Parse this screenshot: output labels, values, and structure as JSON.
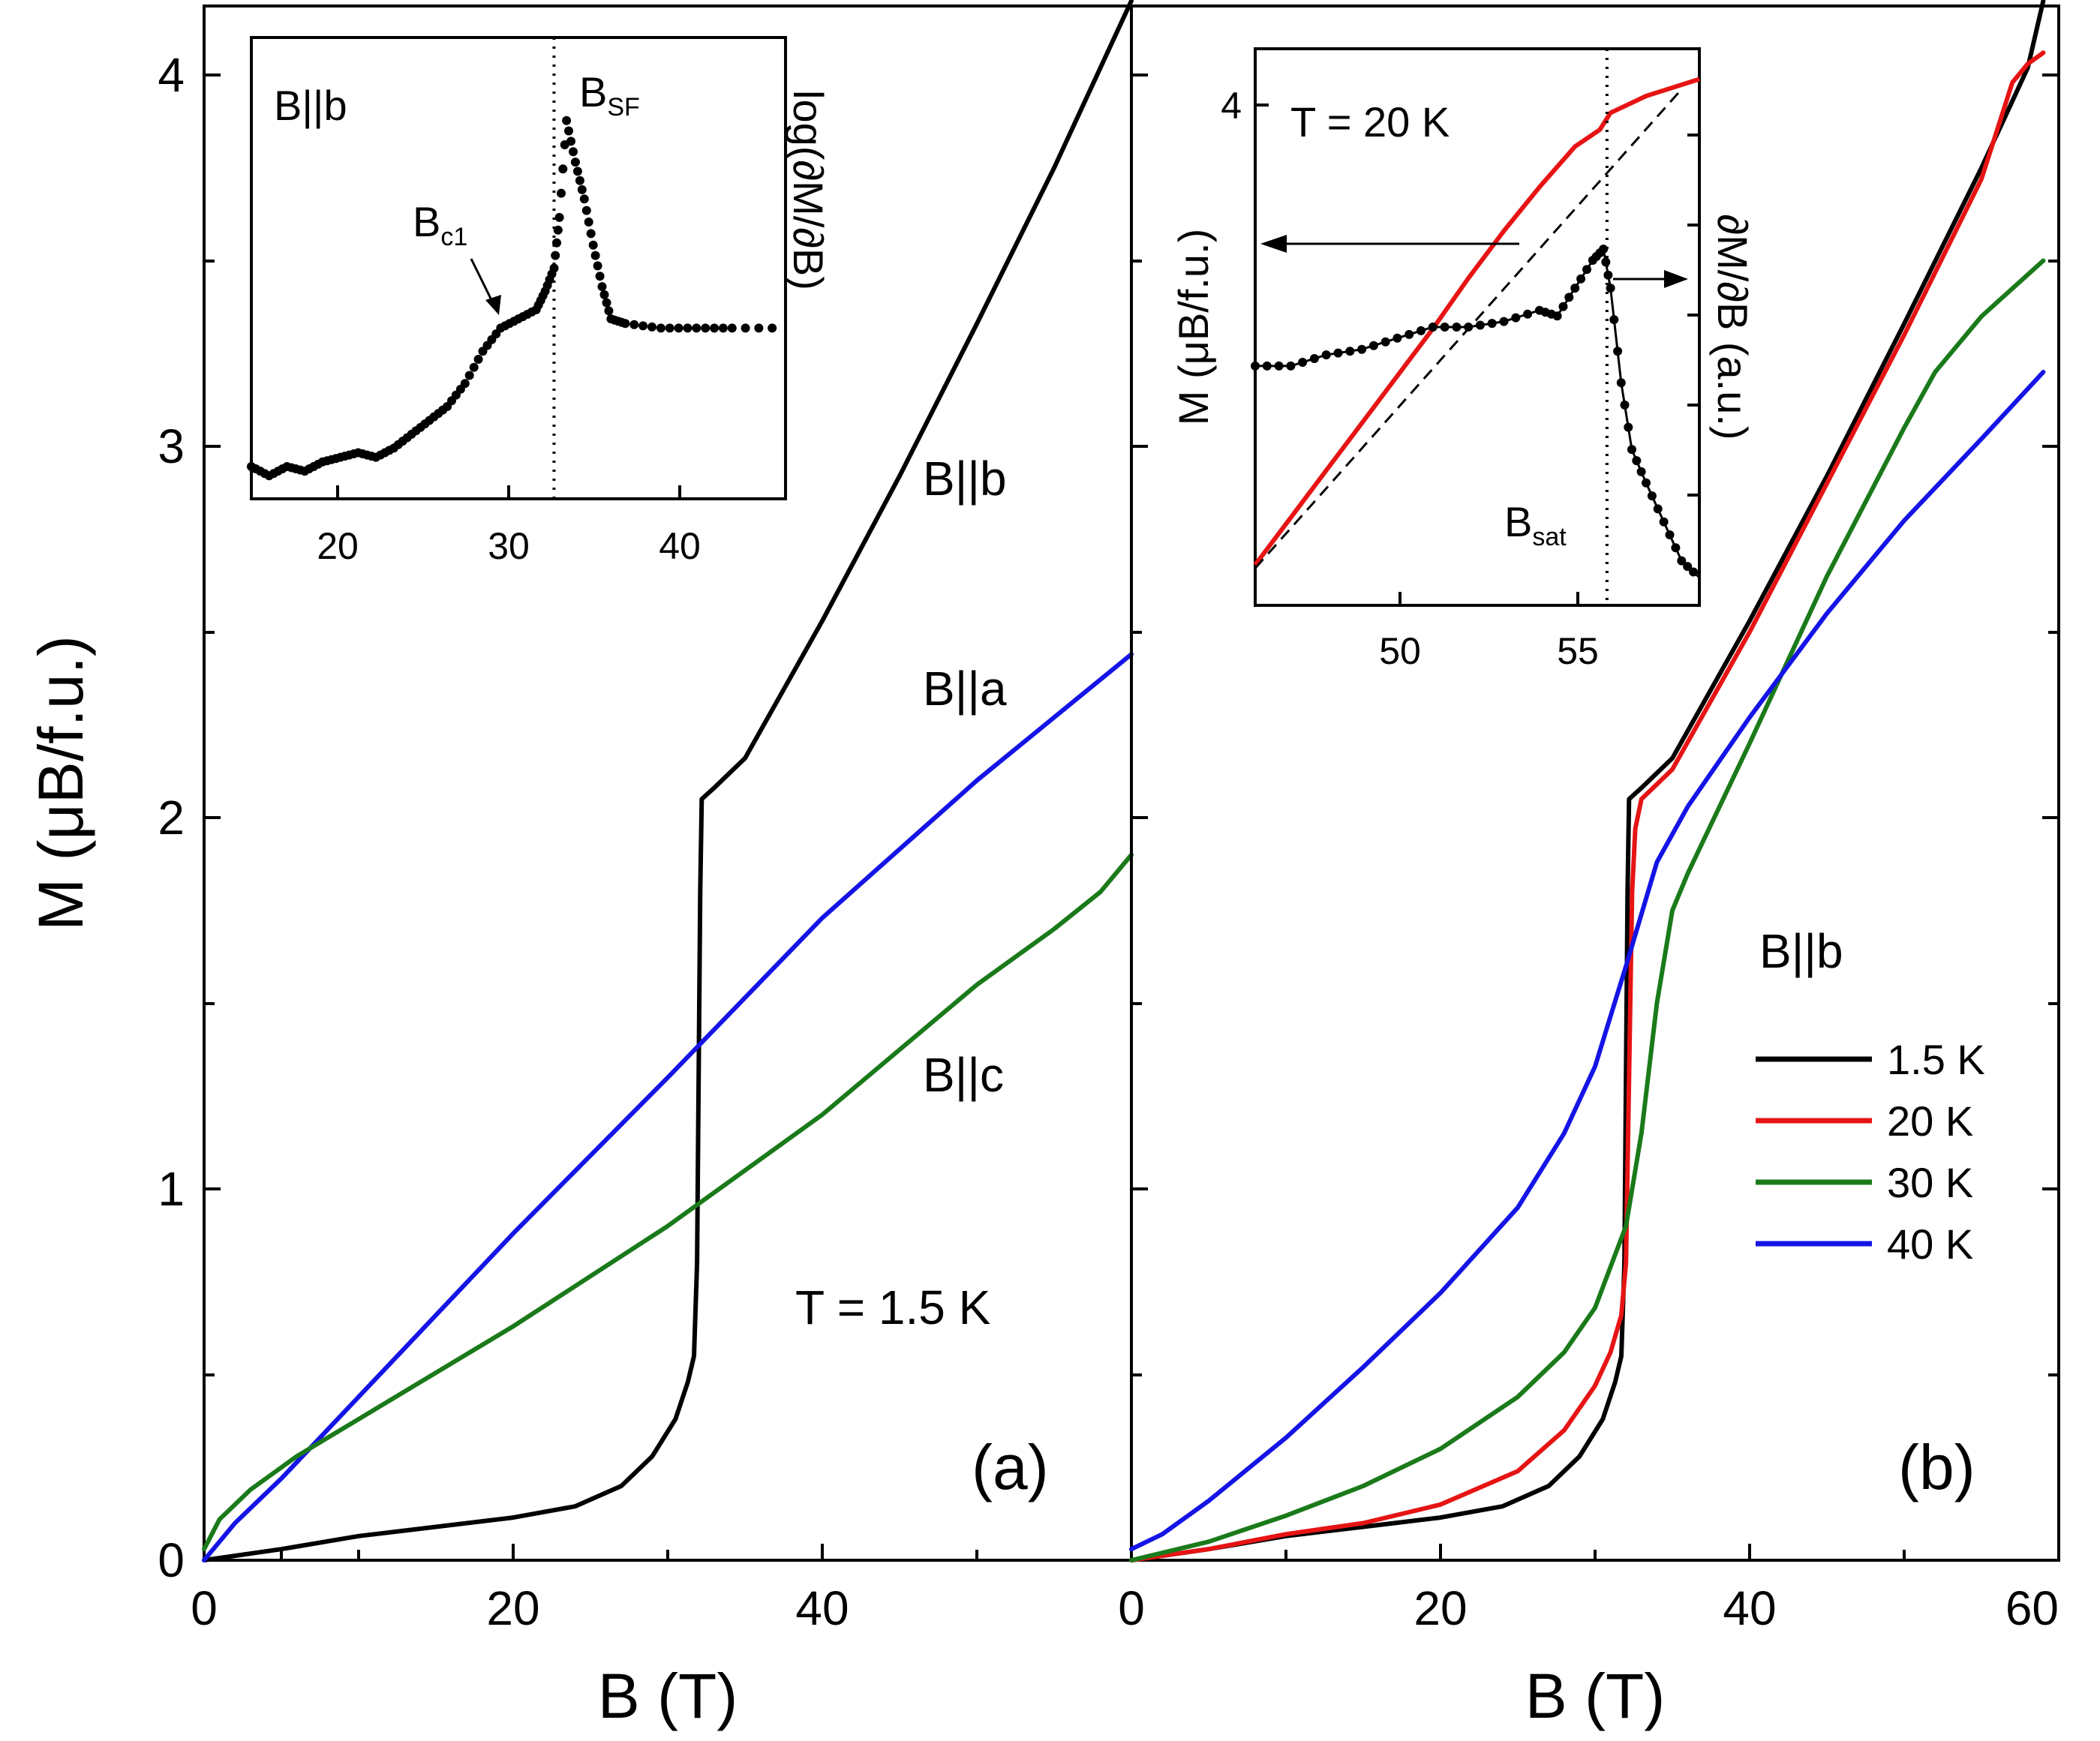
{
  "chart_data": [
    {
      "id": "a",
      "type": "line",
      "panel_label": "(a)",
      "xlabel": "B (T)",
      "ylabel": "M (μB/f.u.)",
      "xlim": [
        0,
        60
      ],
      "ylim": [
        0,
        4.2
      ],
      "x_ticks": [
        "0",
        "20",
        "40"
      ],
      "y_ticks": [
        "0",
        "1",
        "2",
        "3",
        "4"
      ],
      "annotation": "T = 1.5 K",
      "series": [
        {
          "name": "B||b",
          "color": "#000000",
          "points": [
            [
              0,
              0
            ],
            [
              5,
              0.03
            ],
            [
              10,
              0.065
            ],
            [
              15,
              0.09
            ],
            [
              20,
              0.115
            ],
            [
              24,
              0.145
            ],
            [
              27,
              0.2
            ],
            [
              29,
              0.28
            ],
            [
              30.5,
              0.38
            ],
            [
              31.3,
              0.48
            ],
            [
              31.7,
              0.55
            ],
            [
              31.9,
              0.8
            ],
            [
              32.0,
              1.3
            ],
            [
              32.1,
              1.8
            ],
            [
              32.2,
              2.05
            ],
            [
              33,
              2.08
            ],
            [
              34,
              2.12
            ],
            [
              35,
              2.16
            ],
            [
              40,
              2.53
            ],
            [
              45,
              2.92
            ],
            [
              50,
              3.33
            ],
            [
              55,
              3.75
            ],
            [
              58,
              4.02
            ],
            [
              60,
              4.2
            ]
          ]
        },
        {
          "name": "B||a",
          "color": "#1414e6",
          "points": [
            [
              0,
              0
            ],
            [
              2,
              0.1
            ],
            [
              5,
              0.22
            ],
            [
              10,
              0.44
            ],
            [
              20,
              0.88
            ],
            [
              30,
              1.3
            ],
            [
              40,
              1.73
            ],
            [
              50,
              2.1
            ],
            [
              60,
              2.44
            ]
          ]
        },
        {
          "name": "B||c",
          "color": "#1a7a1a",
          "points": [
            [
              0,
              0.03
            ],
            [
              1,
              0.11
            ],
            [
              3,
              0.19
            ],
            [
              6,
              0.28
            ],
            [
              10,
              0.38
            ],
            [
              20,
              0.63
            ],
            [
              30,
              0.9
            ],
            [
              40,
              1.2
            ],
            [
              50,
              1.55
            ],
            [
              55,
              1.7
            ],
            [
              58,
              1.8
            ],
            [
              60,
              1.9
            ]
          ]
        }
      ]
    },
    {
      "id": "b",
      "type": "line",
      "panel_label": "(b)",
      "xlabel": "B (T)",
      "xlim": [
        0,
        60
      ],
      "ylim": [
        0,
        4.2
      ],
      "x_ticks": [
        "0",
        "20",
        "40",
        "60"
      ],
      "legend_title": "B||b",
      "legend_position": "right",
      "series": [
        {
          "name": "1.5 K",
          "color": "#000000",
          "points": [
            [
              0,
              0
            ],
            [
              5,
              0.03
            ],
            [
              10,
              0.065
            ],
            [
              15,
              0.09
            ],
            [
              20,
              0.115
            ],
            [
              24,
              0.145
            ],
            [
              27,
              0.2
            ],
            [
              29,
              0.28
            ],
            [
              30.5,
              0.38
            ],
            [
              31.3,
              0.48
            ],
            [
              31.7,
              0.55
            ],
            [
              31.9,
              0.8
            ],
            [
              32.0,
              1.3
            ],
            [
              32.1,
              1.8
            ],
            [
              32.2,
              2.05
            ],
            [
              33,
              2.08
            ],
            [
              34,
              2.12
            ],
            [
              35,
              2.16
            ],
            [
              40,
              2.53
            ],
            [
              45,
              2.92
            ],
            [
              50,
              3.33
            ],
            [
              55,
              3.75
            ],
            [
              58,
              4.02
            ],
            [
              59,
              4.2
            ]
          ]
        },
        {
          "name": "20 K",
          "color": "#e61414",
          "points": [
            [
              0,
              0
            ],
            [
              5,
              0.03
            ],
            [
              10,
              0.07
            ],
            [
              15,
              0.1
            ],
            [
              20,
              0.15
            ],
            [
              25,
              0.24
            ],
            [
              28,
              0.35
            ],
            [
              30,
              0.47
            ],
            [
              31,
              0.56
            ],
            [
              31.7,
              0.66
            ],
            [
              32,
              0.8
            ],
            [
              32.2,
              1.3
            ],
            [
              32.4,
              1.8
            ],
            [
              32.6,
              1.97
            ],
            [
              33,
              2.05
            ],
            [
              35,
              2.13
            ],
            [
              40,
              2.5
            ],
            [
              45,
              2.9
            ],
            [
              50,
              3.3
            ],
            [
              55,
              3.72
            ],
            [
              56,
              3.85
            ],
            [
              57,
              3.98
            ],
            [
              58,
              4.03
            ],
            [
              59,
              4.06
            ]
          ]
        },
        {
          "name": "30 K",
          "color": "#1a7a1a",
          "points": [
            [
              0,
              0
            ],
            [
              5,
              0.05
            ],
            [
              10,
              0.12
            ],
            [
              15,
              0.2
            ],
            [
              20,
              0.3
            ],
            [
              25,
              0.44
            ],
            [
              28,
              0.56
            ],
            [
              30,
              0.68
            ],
            [
              32,
              0.9
            ],
            [
              33,
              1.15
            ],
            [
              34,
              1.5
            ],
            [
              35,
              1.75
            ],
            [
              36,
              1.85
            ],
            [
              40,
              2.2
            ],
            [
              45,
              2.65
            ],
            [
              50,
              3.05
            ],
            [
              52,
              3.2
            ],
            [
              55,
              3.35
            ],
            [
              59,
              3.5
            ]
          ]
        },
        {
          "name": "40 K",
          "color": "#1414e6",
          "points": [
            [
              0,
              0.03
            ],
            [
              2,
              0.07
            ],
            [
              5,
              0.16
            ],
            [
              10,
              0.33
            ],
            [
              15,
              0.52
            ],
            [
              20,
              0.72
            ],
            [
              25,
              0.95
            ],
            [
              28,
              1.15
            ],
            [
              30,
              1.33
            ],
            [
              32,
              1.6
            ],
            [
              34,
              1.88
            ],
            [
              36,
              2.03
            ],
            [
              40,
              2.27
            ],
            [
              45,
              2.55
            ],
            [
              50,
              2.8
            ],
            [
              55,
              3.02
            ],
            [
              59,
              3.2
            ]
          ]
        }
      ]
    },
    {
      "id": "a-inset",
      "type": "scatter",
      "label": "B||b",
      "ylabel": "log(∂M/∂B)",
      "xlim": [
        15,
        45
      ],
      "x_ticks": [
        "20",
        "30",
        "40"
      ],
      "markers": [
        {
          "name": "Bc1",
          "x": 29.6
        },
        {
          "name": "BSF",
          "x": 32
        }
      ],
      "points": [
        [
          15,
          0.07
        ],
        [
          16,
          0.05
        ],
        [
          17,
          0.07
        ],
        [
          18,
          0.06
        ],
        [
          19,
          0.08
        ],
        [
          20,
          0.09
        ],
        [
          21,
          0.1
        ],
        [
          22,
          0.09
        ],
        [
          23,
          0.11
        ],
        [
          24,
          0.14
        ],
        [
          25,
          0.17
        ],
        [
          26,
          0.2
        ],
        [
          27,
          0.25
        ],
        [
          28,
          0.32
        ],
        [
          29,
          0.37
        ],
        [
          30,
          0.39
        ],
        [
          31,
          0.41
        ],
        [
          31.5,
          0.45
        ],
        [
          32,
          0.5
        ],
        [
          32.3,
          0.61
        ],
        [
          32.7,
          0.82
        ],
        [
          33.2,
          0.73
        ],
        [
          33.7,
          0.65
        ],
        [
          34.2,
          0.55
        ],
        [
          34.7,
          0.46
        ],
        [
          35.2,
          0.39
        ],
        [
          36,
          0.38
        ],
        [
          38,
          0.37
        ],
        [
          40,
          0.37
        ],
        [
          42,
          0.37
        ],
        [
          45,
          0.37
        ]
      ],
      "y_units": "normalized 0-1"
    },
    {
      "id": "b-inset",
      "type": "line",
      "title": "T = 20 K",
      "ylabel_left": "M (μB/f.u.)",
      "ylabel_right": "∂M/∂B (a.u.)",
      "xlim": [
        46,
        58.5
      ],
      "x_ticks": [
        "50",
        "55"
      ],
      "y_ticks_left": [
        "4"
      ],
      "markers": [
        {
          "name": "Bsat",
          "x": 55.9
        }
      ],
      "series": [
        {
          "name": "M",
          "color": "#e61414",
          "axis": "left",
          "points": [
            [
              46,
              2.72
            ],
            [
              47,
              2.86
            ],
            [
              48,
              3.0
            ],
            [
              49,
              3.14
            ],
            [
              50,
              3.28
            ],
            [
              51,
              3.42
            ],
            [
              52,
              3.57
            ],
            [
              53,
              3.71
            ],
            [
              54,
              3.84
            ],
            [
              55,
              3.96
            ],
            [
              55.7,
              4.01
            ],
            [
              56,
              4.06
            ],
            [
              57,
              4.11
            ],
            [
              58.5,
              4.16
            ]
          ]
        },
        {
          "name": "linear extrapolation",
          "color": "#000000",
          "axis": "left",
          "dashed": true,
          "points": [
            [
              46,
              2.71
            ],
            [
              58,
              4.13
            ]
          ]
        },
        {
          "name": "dM/dB",
          "color": "#000000",
          "axis": "right",
          "points": [
            [
              46,
              0.43
            ],
            [
              47,
              0.43
            ],
            [
              48,
              0.45
            ],
            [
              49,
              0.46
            ],
            [
              50,
              0.48
            ],
            [
              51,
              0.5
            ],
            [
              52,
              0.5
            ],
            [
              53,
              0.51
            ],
            [
              54,
              0.53
            ],
            [
              54.5,
              0.52
            ],
            [
              55,
              0.57
            ],
            [
              55.5,
              0.62
            ],
            [
              55.8,
              0.64
            ],
            [
              56,
              0.57
            ],
            [
              56.3,
              0.4
            ],
            [
              56.6,
              0.28
            ],
            [
              57,
              0.22
            ],
            [
              57.5,
              0.15
            ],
            [
              58,
              0.08
            ],
            [
              58.5,
              0.05
            ]
          ]
        }
      ]
    }
  ]
}
